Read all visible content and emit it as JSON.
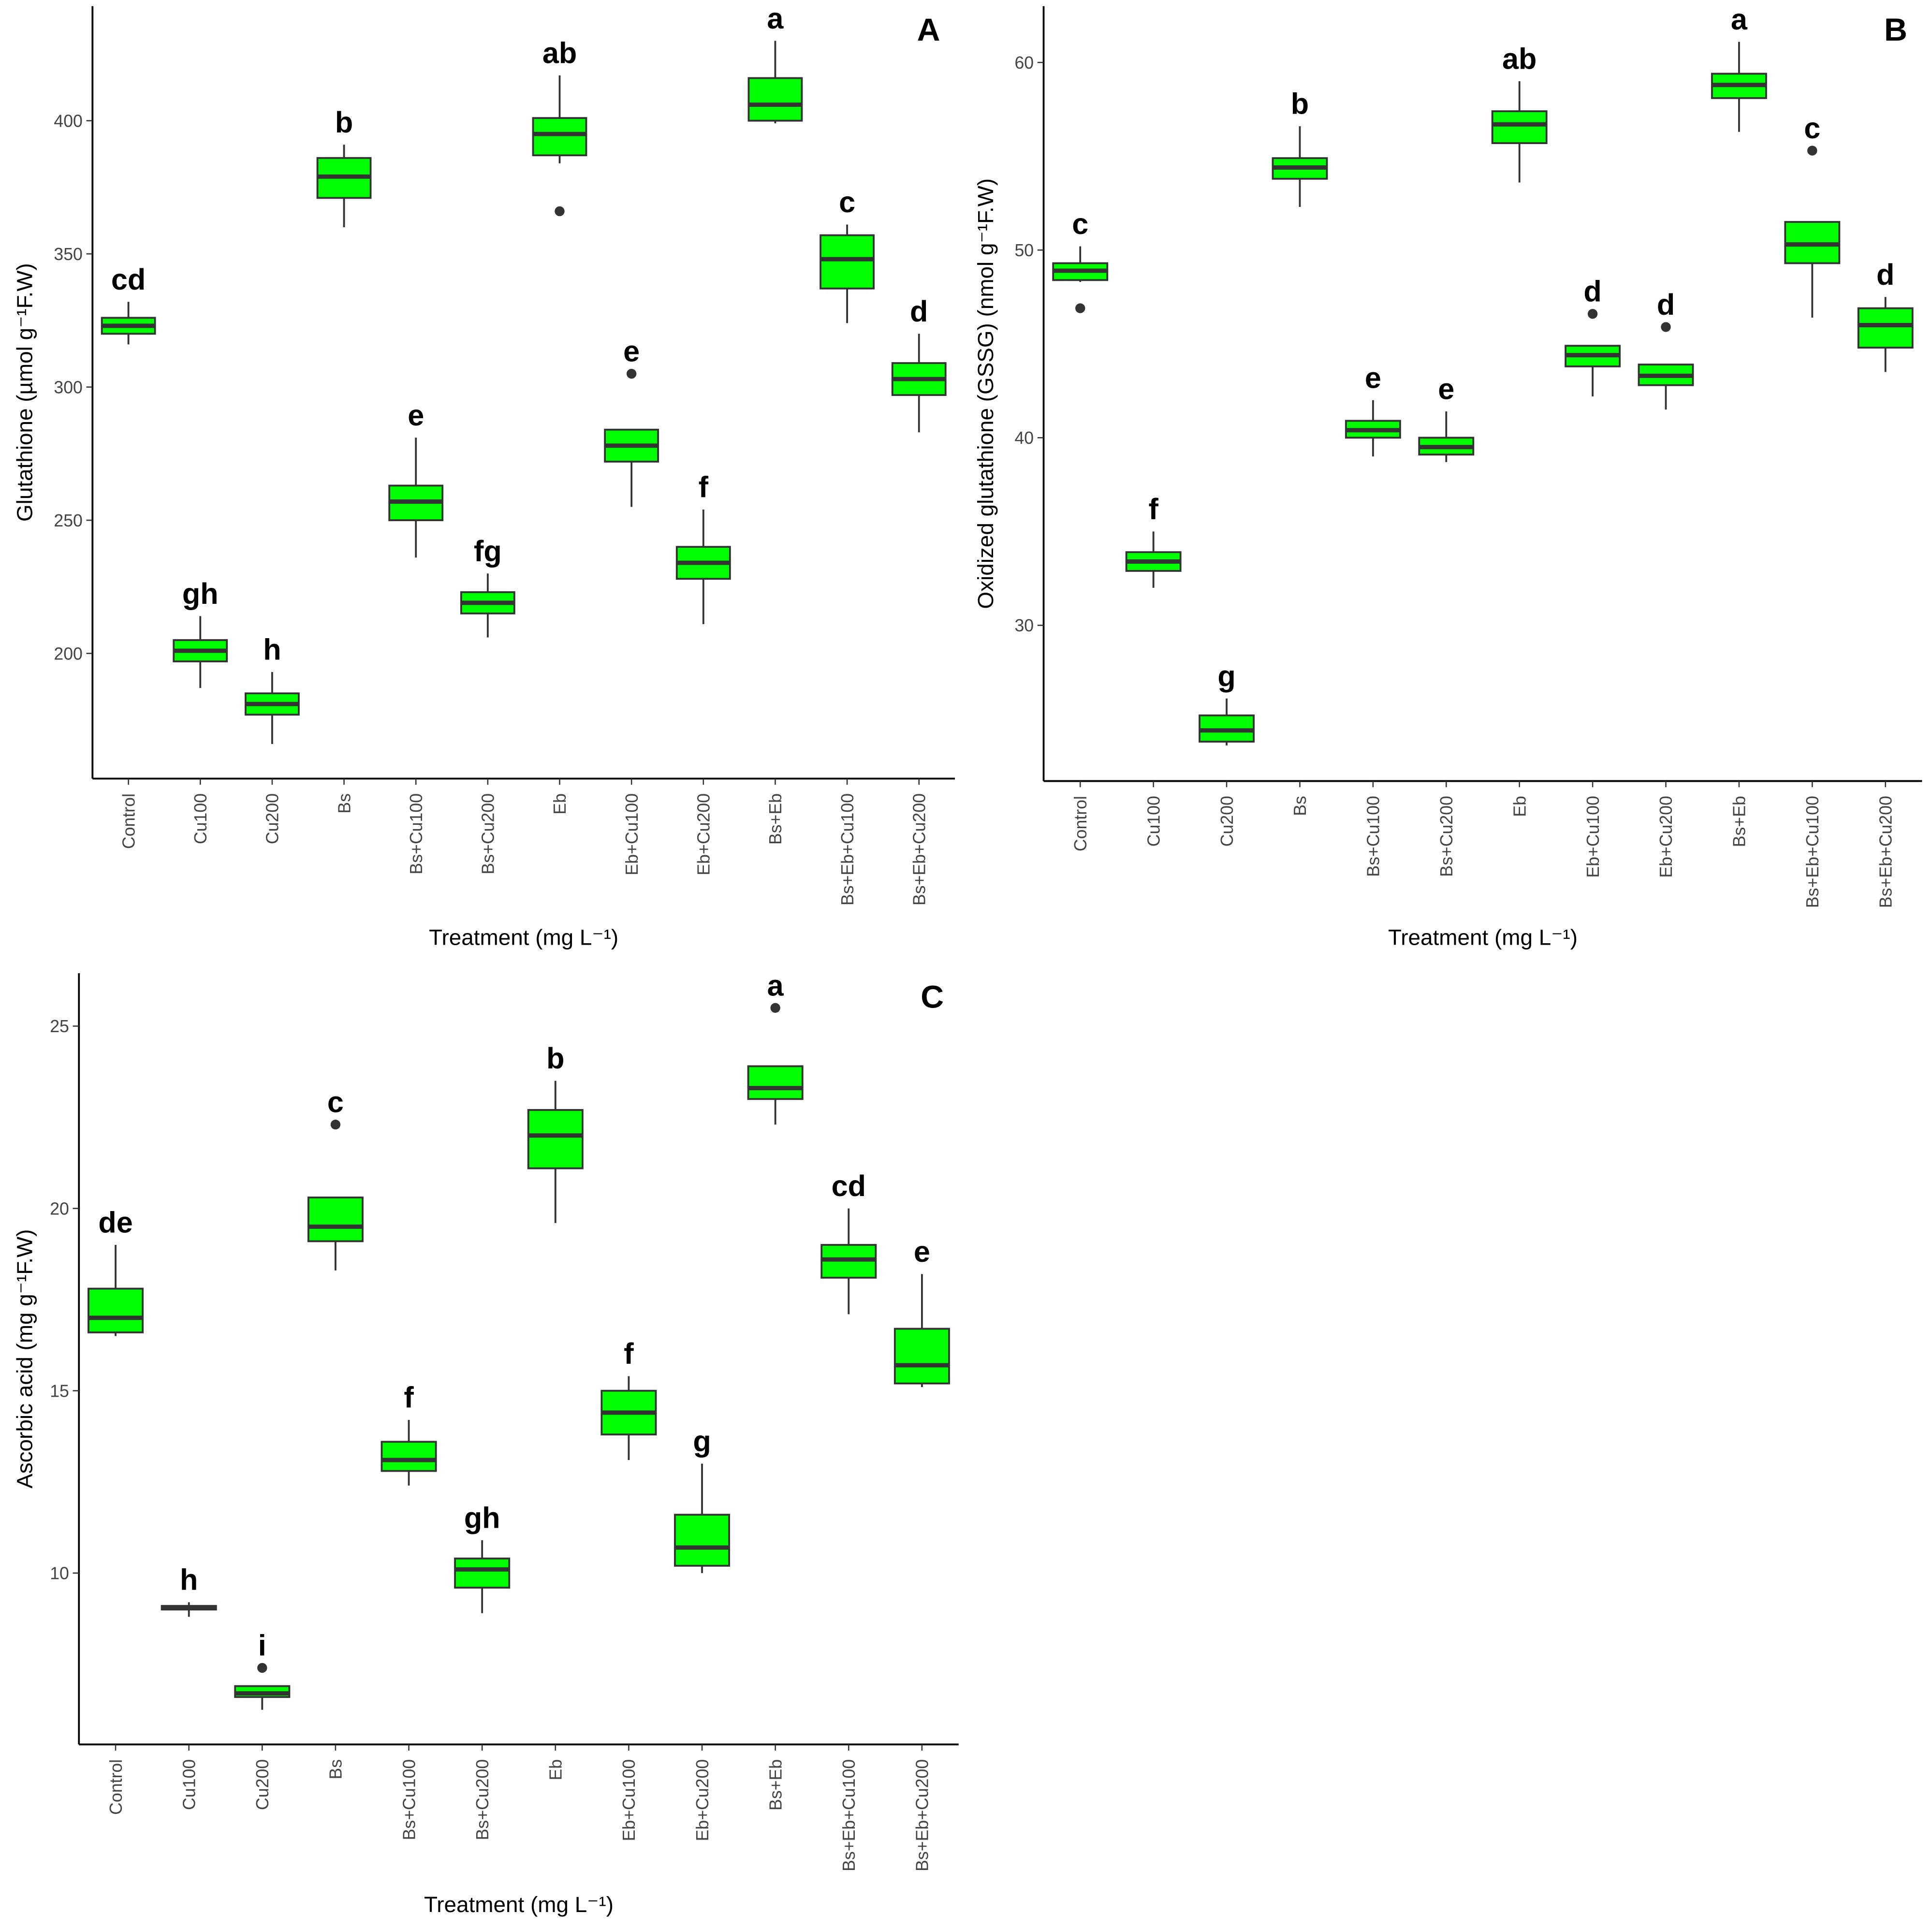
{
  "chart_data": [
    {
      "type": "box",
      "panel_label": "A",
      "ylabel": "Glutathione (µmol g⁻¹F.W)",
      "xlabel": "Treatment (mg L⁻¹)",
      "categories": [
        "Control",
        "Cu100",
        "Cu200",
        "Bs",
        "Bs+Cu100",
        "Bs+Cu200",
        "Eb",
        "Eb+Cu100",
        "Eb+Cu200",
        "Bs+Eb",
        "Bs+Eb+Cu100",
        "Bs+Eb+Cu200"
      ],
      "whisker_low": [
        316,
        187,
        166,
        360,
        236,
        206,
        384,
        255,
        211,
        399,
        324,
        283
      ],
      "q1": [
        320,
        197,
        177,
        371,
        250,
        215,
        387,
        272,
        228,
        400,
        337,
        297
      ],
      "median": [
        323,
        201,
        181,
        379,
        257,
        219,
        395,
        278,
        234,
        406,
        348,
        303
      ],
      "q3": [
        326,
        205,
        185,
        386,
        263,
        223,
        401,
        284,
        240,
        416,
        357,
        309
      ],
      "whisker_high": [
        332,
        214,
        193,
        391,
        281,
        230,
        417,
        284,
        254,
        430,
        361,
        320
      ],
      "outliers": [
        null,
        null,
        null,
        null,
        null,
        null,
        366,
        305,
        null,
        null,
        null,
        null
      ],
      "letters": [
        "cd",
        "gh",
        "h",
        "b",
        "e",
        "fg",
        "ab",
        "e",
        "f",
        "a",
        "c",
        "d"
      ],
      "color": "#00ff00",
      "ylim": [
        153,
        443
      ],
      "yticks": [
        200,
        250,
        300,
        350,
        400
      ]
    },
    {
      "type": "box",
      "panel_label": "B",
      "ylabel": "Oxidized glutathione (GSSG) (nmol g⁻¹F.W)",
      "xlabel": "Treatment (mg L⁻¹)",
      "categories": [
        "Control",
        "Cu100",
        "Cu200",
        "Bs",
        "Bs+Cu100",
        "Bs+Cu200",
        "Eb",
        "Eb+Cu100",
        "Eb+Cu200",
        "Bs+Eb",
        "Bs+Eb+Cu100",
        "Bs+Eb+Cu200"
      ],
      "whisker_low": [
        48.3,
        32.0,
        23.6,
        52.3,
        39.0,
        38.7,
        53.6,
        42.2,
        41.5,
        56.3,
        46.4,
        43.5
      ],
      "q1": [
        48.4,
        32.9,
        23.8,
        53.8,
        40.0,
        39.1,
        55.7,
        43.8,
        42.8,
        58.1,
        49.3,
        44.8
      ],
      "median": [
        48.9,
        33.4,
        24.4,
        54.4,
        40.4,
        39.5,
        56.7,
        44.4,
        43.3,
        58.8,
        50.3,
        46.0
      ],
      "q3": [
        49.3,
        33.9,
        25.2,
        54.9,
        40.9,
        40.0,
        57.4,
        44.9,
        43.9,
        59.4,
        51.5,
        46.9
      ],
      "whisker_high": [
        50.2,
        35.0,
        26.1,
        56.6,
        42.0,
        41.4,
        59.0,
        44.9,
        43.9,
        61.1,
        51.5,
        47.5
      ],
      "outliers": [
        46.9,
        null,
        null,
        null,
        null,
        null,
        null,
        46.6,
        45.9,
        null,
        55.3,
        null
      ],
      "letters": [
        "c",
        "f",
        "g",
        "b",
        "e",
        "e",
        "ab",
        "d",
        "d",
        "a",
        "c",
        "d"
      ],
      "color": "#00ff00",
      "ylim": [
        21.7,
        63
      ],
      "yticks": [
        30,
        40,
        50,
        60
      ]
    },
    {
      "type": "box",
      "panel_label": "C",
      "ylabel": "Ascorbic acid (mg g⁻¹F.W)",
      "xlabel": "Treatment (mg L⁻¹)",
      "categories": [
        "Control",
        "Cu100",
        "Cu200",
        "Bs",
        "Bs+Cu100",
        "Bs+Cu200",
        "Eb",
        "Eb+Cu100",
        "Eb+Cu200",
        "Bs+Eb",
        "Bs+Eb+Cu100",
        "Bs+Eb+Cu200"
      ],
      "whisker_low": [
        16.5,
        8.8,
        6.25,
        18.3,
        12.4,
        8.9,
        19.6,
        13.1,
        10.0,
        22.3,
        17.1,
        15.1
      ],
      "q1": [
        16.6,
        9.0,
        6.6,
        19.1,
        12.8,
        9.6,
        21.1,
        13.8,
        10.2,
        23.0,
        18.1,
        15.2
      ],
      "median": [
        17.0,
        9.05,
        6.7,
        19.5,
        13.1,
        10.1,
        22.0,
        14.4,
        10.7,
        23.3,
        18.6,
        15.7
      ],
      "q3": [
        17.8,
        9.1,
        6.9,
        20.3,
        13.6,
        10.4,
        22.7,
        15.0,
        11.6,
        23.9,
        19.0,
        16.7
      ],
      "whisker_high": [
        19.0,
        9.2,
        6.9,
        20.3,
        14.2,
        10.9,
        23.5,
        15.4,
        13.0,
        23.9,
        20.0,
        18.2
      ],
      "outliers": [
        null,
        null,
        7.4,
        22.3,
        null,
        null,
        null,
        null,
        null,
        25.5,
        null,
        null
      ],
      "letters": [
        "de",
        "h",
        "i",
        "c",
        "f",
        "gh",
        "b",
        "f",
        "g",
        "a",
        "cd",
        "e"
      ],
      "color": "#00ff00",
      "ylim": [
        5.3,
        26.45
      ],
      "yticks": [
        10,
        15,
        20,
        25
      ]
    }
  ]
}
